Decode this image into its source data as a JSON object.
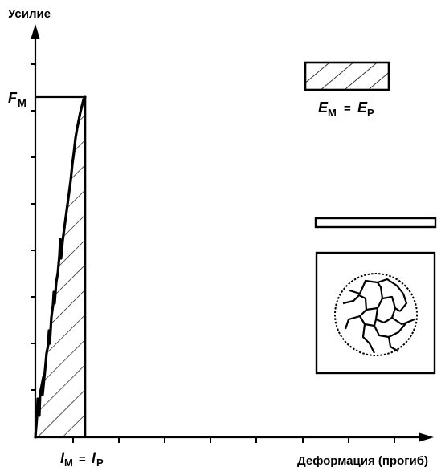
{
  "axes": {
    "y_label": "Усилие",
    "x_label": "Деформация (прогиб)"
  },
  "force_label": {
    "symbol": "F",
    "sub": "M"
  },
  "deflection_label": {
    "left_symbol": "l",
    "left_sub": "M",
    "equals": "=",
    "right_symbol": "l",
    "right_sub": "P"
  },
  "energy_label": {
    "left_symbol": "E",
    "left_sub": "M",
    "equals": "=",
    "right_symbol": "E",
    "right_sub": "P"
  },
  "colors": {
    "ink": "#000000",
    "paper": "#ffffff"
  }
}
